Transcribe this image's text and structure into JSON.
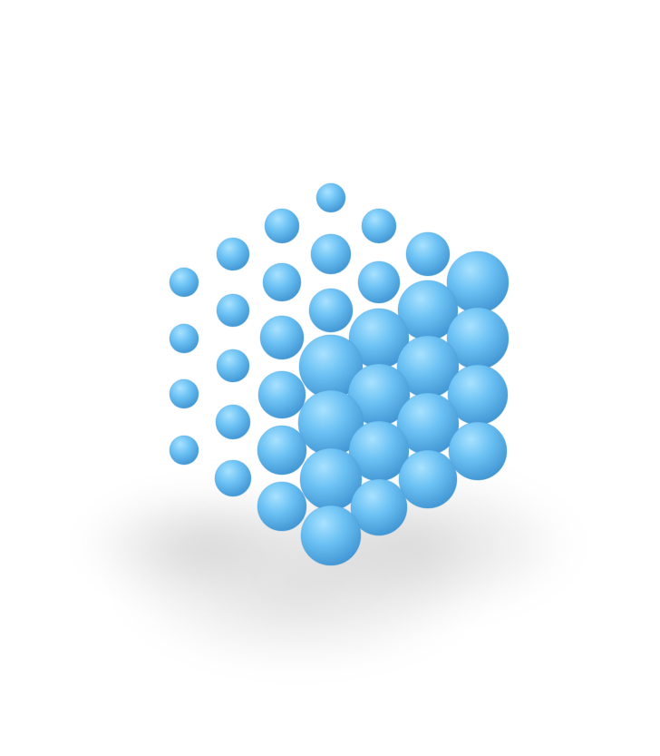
{
  "image": {
    "subject": "sphere-cluster",
    "background_color": "#ffffff",
    "sphere_color": "#5db8f0",
    "sphere_highlight": "#a9e2ff",
    "sphere_shadow_tone": "#3f93d1",
    "shadow_color": "#c8c8c8"
  }
}
